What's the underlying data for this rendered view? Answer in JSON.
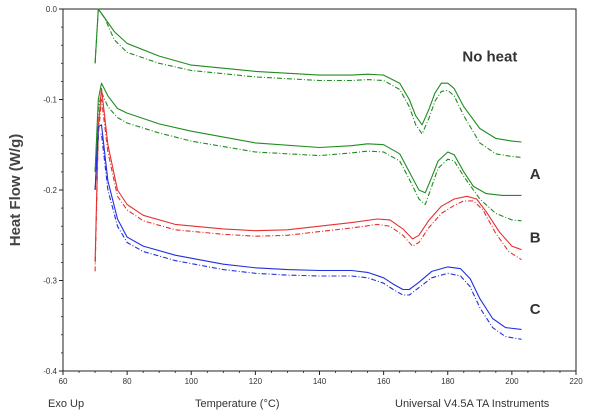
{
  "chart_data": {
    "type": "line",
    "ylabel": "Heat Flow (W/g)",
    "xlim": [
      60,
      220
    ],
    "ylim": [
      -0.4,
      0.0
    ],
    "x_ticks": [
      "60",
      "80",
      "100",
      "120",
      "140",
      "160",
      "180",
      "200",
      "220"
    ],
    "y_ticks": [
      "0.0",
      "-0.1",
      "-0.2",
      "-0.3",
      "-0.4"
    ],
    "colors": {
      "no_heat": "#1f8c1f",
      "A": "#1f8c1f",
      "B": "#e83030",
      "C": "#2030e0"
    },
    "curve_labels": [
      {
        "text": "No heat",
        "key": "no_heat"
      },
      {
        "text": "A",
        "key": "A"
      },
      {
        "text": "B",
        "key": "B"
      },
      {
        "text": "C",
        "key": "C"
      }
    ],
    "series": [
      {
        "color_key": "no_heat",
        "style": "solid",
        "points": [
          [
            70,
            -0.06
          ],
          [
            71,
            0.0
          ],
          [
            73,
            -0.01
          ],
          [
            76,
            -0.025
          ],
          [
            80,
            -0.038
          ],
          [
            90,
            -0.052
          ],
          [
            100,
            -0.062
          ],
          [
            120,
            -0.069
          ],
          [
            140,
            -0.073
          ],
          [
            150,
            -0.073
          ],
          [
            155,
            -0.072
          ],
          [
            160,
            -0.073
          ],
          [
            165,
            -0.082
          ],
          [
            168,
            -0.1
          ],
          [
            170,
            -0.118
          ],
          [
            172,
            -0.128
          ],
          [
            174,
            -0.112
          ],
          [
            176,
            -0.093
          ],
          [
            178,
            -0.082
          ],
          [
            180,
            -0.082
          ],
          [
            182,
            -0.088
          ],
          [
            185,
            -0.108
          ],
          [
            190,
            -0.132
          ],
          [
            195,
            -0.143
          ],
          [
            200,
            -0.146
          ],
          [
            203,
            -0.147
          ]
        ]
      },
      {
        "color_key": "no_heat",
        "style": "dashdot",
        "points": [
          [
            70,
            -0.06
          ],
          [
            71,
            0.0
          ],
          [
            73,
            -0.01
          ],
          [
            76,
            -0.034
          ],
          [
            80,
            -0.048
          ],
          [
            90,
            -0.06
          ],
          [
            100,
            -0.068
          ],
          [
            120,
            -0.075
          ],
          [
            140,
            -0.079
          ],
          [
            150,
            -0.079
          ],
          [
            155,
            -0.078
          ],
          [
            160,
            -0.079
          ],
          [
            165,
            -0.089
          ],
          [
            168,
            -0.108
          ],
          [
            170,
            -0.128
          ],
          [
            172,
            -0.138
          ],
          [
            174,
            -0.122
          ],
          [
            176,
            -0.102
          ],
          [
            178,
            -0.091
          ],
          [
            180,
            -0.09
          ],
          [
            182,
            -0.096
          ],
          [
            185,
            -0.118
          ],
          [
            190,
            -0.148
          ],
          [
            195,
            -0.16
          ],
          [
            200,
            -0.163
          ],
          [
            203,
            -0.164
          ]
        ]
      },
      {
        "color_key": "A",
        "style": "solid",
        "points": [
          [
            70,
            -0.18
          ],
          [
            71,
            -0.1
          ],
          [
            72,
            -0.082
          ],
          [
            74,
            -0.096
          ],
          [
            77,
            -0.11
          ],
          [
            80,
            -0.115
          ],
          [
            90,
            -0.127
          ],
          [
            100,
            -0.135
          ],
          [
            120,
            -0.148
          ],
          [
            140,
            -0.153
          ],
          [
            150,
            -0.151
          ],
          [
            155,
            -0.149
          ],
          [
            160,
            -0.15
          ],
          [
            165,
            -0.16
          ],
          [
            168,
            -0.18
          ],
          [
            171,
            -0.2
          ],
          [
            173,
            -0.203
          ],
          [
            175,
            -0.186
          ],
          [
            177,
            -0.168
          ],
          [
            180,
            -0.158
          ],
          [
            182,
            -0.161
          ],
          [
            185,
            -0.18
          ],
          [
            188,
            -0.196
          ],
          [
            192,
            -0.204
          ],
          [
            197,
            -0.206
          ],
          [
            203,
            -0.206
          ]
        ]
      },
      {
        "color_key": "A",
        "style": "dashdot",
        "points": [
          [
            70,
            -0.18
          ],
          [
            71,
            -0.11
          ],
          [
            72,
            -0.092
          ],
          [
            74,
            -0.108
          ],
          [
            77,
            -0.12
          ],
          [
            80,
            -0.126
          ],
          [
            90,
            -0.137
          ],
          [
            100,
            -0.146
          ],
          [
            120,
            -0.158
          ],
          [
            140,
            -0.162
          ],
          [
            150,
            -0.159
          ],
          [
            155,
            -0.157
          ],
          [
            160,
            -0.158
          ],
          [
            165,
            -0.168
          ],
          [
            168,
            -0.188
          ],
          [
            171,
            -0.21
          ],
          [
            173,
            -0.216
          ],
          [
            175,
            -0.196
          ],
          [
            177,
            -0.176
          ],
          [
            180,
            -0.166
          ],
          [
            182,
            -0.168
          ],
          [
            185,
            -0.185
          ],
          [
            190,
            -0.21
          ],
          [
            195,
            -0.226
          ],
          [
            200,
            -0.233
          ],
          [
            203,
            -0.234
          ]
        ]
      },
      {
        "color_key": "B",
        "style": "solid",
        "points": [
          [
            70,
            -0.28
          ],
          [
            71,
            -0.13
          ],
          [
            72,
            -0.088
          ],
          [
            74,
            -0.15
          ],
          [
            77,
            -0.2
          ],
          [
            80,
            -0.216
          ],
          [
            85,
            -0.228
          ],
          [
            95,
            -0.238
          ],
          [
            110,
            -0.243
          ],
          [
            120,
            -0.245
          ],
          [
            130,
            -0.244
          ],
          [
            140,
            -0.24
          ],
          [
            150,
            -0.236
          ],
          [
            158,
            -0.232
          ],
          [
            162,
            -0.233
          ],
          [
            166,
            -0.243
          ],
          [
            169,
            -0.254
          ],
          [
            171,
            -0.25
          ],
          [
            174,
            -0.234
          ],
          [
            178,
            -0.218
          ],
          [
            182,
            -0.21
          ],
          [
            186,
            -0.207
          ],
          [
            189,
            -0.21
          ],
          [
            192,
            -0.224
          ],
          [
            196,
            -0.246
          ],
          [
            200,
            -0.262
          ],
          [
            203,
            -0.266
          ]
        ]
      },
      {
        "color_key": "B",
        "style": "dashdot",
        "points": [
          [
            70,
            -0.29
          ],
          [
            71,
            -0.14
          ],
          [
            72,
            -0.1
          ],
          [
            74,
            -0.158
          ],
          [
            77,
            -0.207
          ],
          [
            80,
            -0.222
          ],
          [
            85,
            -0.234
          ],
          [
            95,
            -0.244
          ],
          [
            110,
            -0.249
          ],
          [
            120,
            -0.251
          ],
          [
            130,
            -0.25
          ],
          [
            140,
            -0.246
          ],
          [
            150,
            -0.242
          ],
          [
            158,
            -0.238
          ],
          [
            162,
            -0.24
          ],
          [
            166,
            -0.25
          ],
          [
            169,
            -0.262
          ],
          [
            171,
            -0.258
          ],
          [
            174,
            -0.242
          ],
          [
            178,
            -0.226
          ],
          [
            182,
            -0.217
          ],
          [
            185,
            -0.212
          ],
          [
            188,
            -0.212
          ],
          [
            191,
            -0.222
          ],
          [
            195,
            -0.248
          ],
          [
            199,
            -0.268
          ],
          [
            203,
            -0.277
          ]
        ]
      },
      {
        "color_key": "C",
        "style": "solid",
        "points": [
          [
            70,
            -0.2
          ],
          [
            71,
            -0.13
          ],
          [
            72,
            -0.128
          ],
          [
            74,
            -0.19
          ],
          [
            77,
            -0.232
          ],
          [
            80,
            -0.252
          ],
          [
            85,
            -0.262
          ],
          [
            95,
            -0.272
          ],
          [
            110,
            -0.282
          ],
          [
            120,
            -0.286
          ],
          [
            130,
            -0.288
          ],
          [
            140,
            -0.289
          ],
          [
            150,
            -0.289
          ],
          [
            155,
            -0.291
          ],
          [
            160,
            -0.297
          ],
          [
            163,
            -0.304
          ],
          [
            166,
            -0.31
          ],
          [
            168,
            -0.31
          ],
          [
            171,
            -0.302
          ],
          [
            175,
            -0.29
          ],
          [
            180,
            -0.285
          ],
          [
            184,
            -0.287
          ],
          [
            187,
            -0.298
          ],
          [
            190,
            -0.32
          ],
          [
            194,
            -0.342
          ],
          [
            198,
            -0.352
          ],
          [
            203,
            -0.354
          ]
        ]
      },
      {
        "color_key": "C",
        "style": "dashdot",
        "points": [
          [
            70,
            -0.2
          ],
          [
            71,
            -0.14
          ],
          [
            72,
            -0.138
          ],
          [
            74,
            -0.2
          ],
          [
            77,
            -0.24
          ],
          [
            80,
            -0.258
          ],
          [
            85,
            -0.268
          ],
          [
            95,
            -0.278
          ],
          [
            110,
            -0.288
          ],
          [
            120,
            -0.292
          ],
          [
            130,
            -0.294
          ],
          [
            140,
            -0.295
          ],
          [
            150,
            -0.295
          ],
          [
            155,
            -0.297
          ],
          [
            160,
            -0.303
          ],
          [
            163,
            -0.31
          ],
          [
            166,
            -0.316
          ],
          [
            168,
            -0.316
          ],
          [
            171,
            -0.308
          ],
          [
            175,
            -0.297
          ],
          [
            180,
            -0.292
          ],
          [
            184,
            -0.295
          ],
          [
            187,
            -0.307
          ],
          [
            190,
            -0.33
          ],
          [
            194,
            -0.352
          ],
          [
            198,
            -0.362
          ],
          [
            203,
            -0.365
          ]
        ]
      }
    ]
  },
  "footer": {
    "exo_up": "Exo Up",
    "xlabel": "Temperature (°C)",
    "instrument": "Universal V4.5A TA Instruments"
  }
}
